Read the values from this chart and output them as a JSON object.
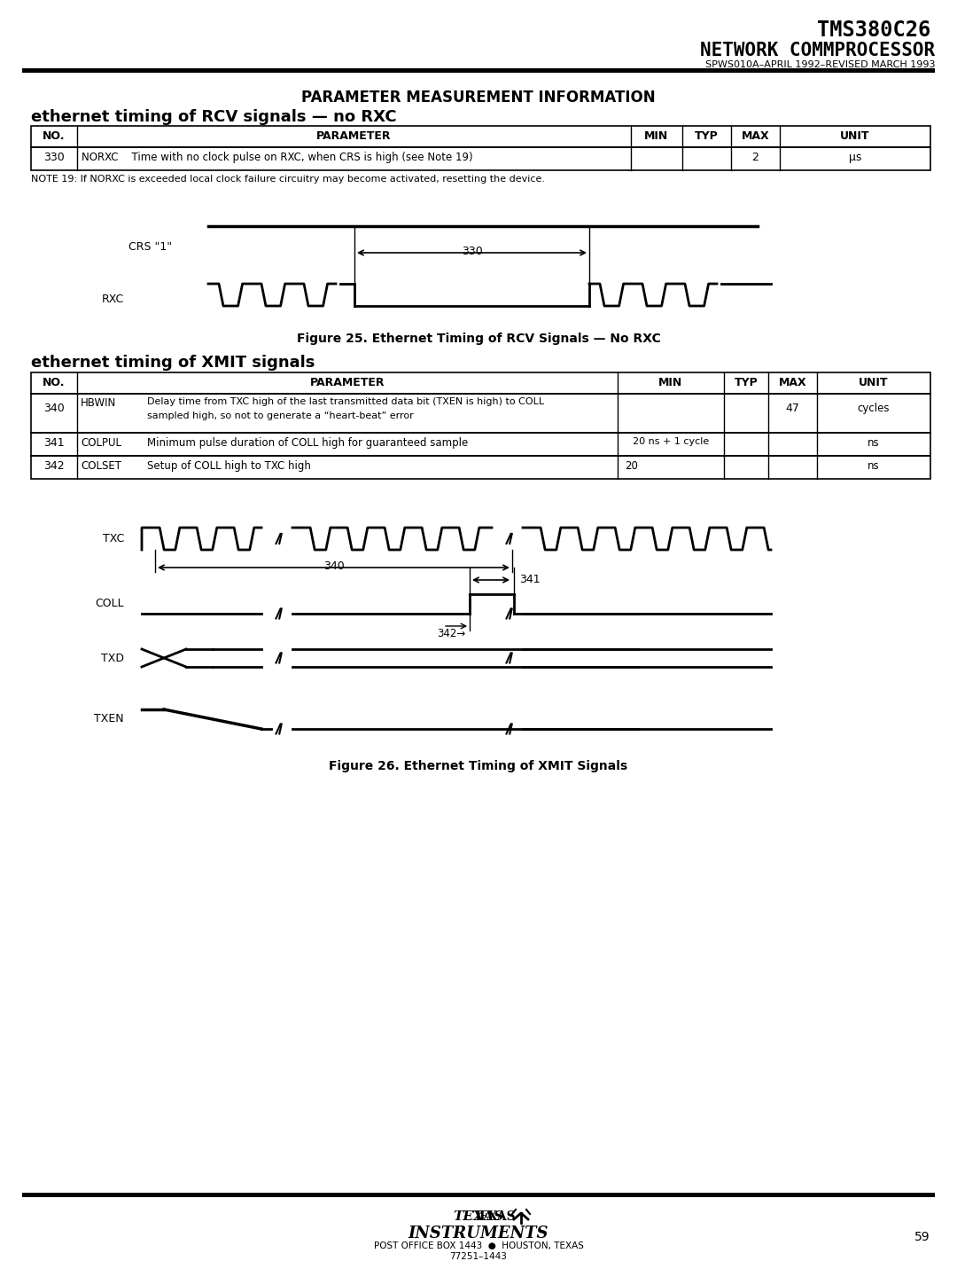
{
  "page_title_line1": "TMS380C26",
  "page_title_line2": "NETWORK COMMPROCESSOR",
  "doc_number": "SPWS010A–APRIL 1992–REVISED MARCH 1993",
  "main_title": "PARAMETER MEASUREMENT INFORMATION",
  "section1_title": "ethernet timing of RCV signals — no RXC",
  "table1_note": "NOTE 19: If NORXC is exceeded local clock failure circuitry may become activated, resetting the device.",
  "fig25_title": "Figure 25. Ethernet Timing of RCV Signals — No RXC",
  "section2_title": "ethernet timing of XMIT signals",
  "fig26_title": "Figure 26. Ethernet Timing of XMIT Signals",
  "footer_page": "59",
  "bg_color": "#ffffff"
}
